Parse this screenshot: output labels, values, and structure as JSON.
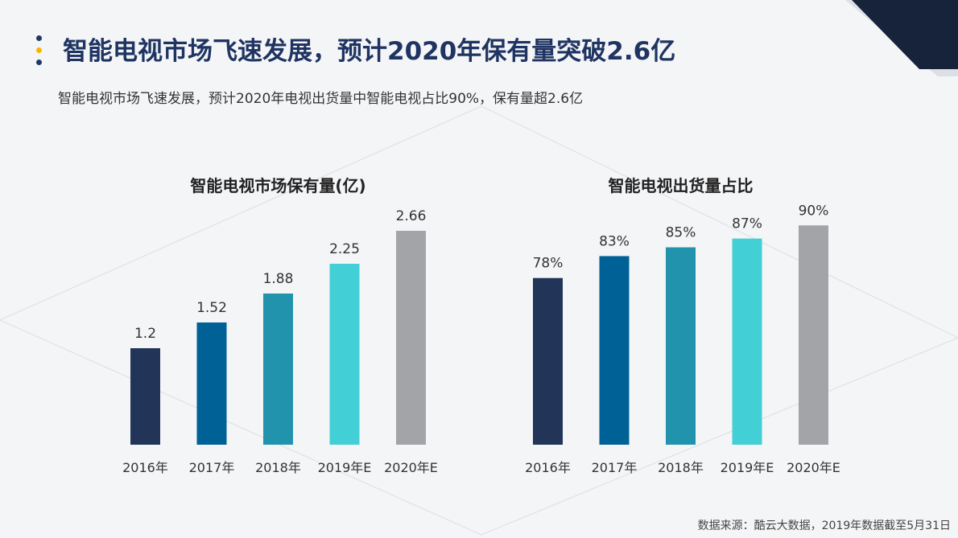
{
  "header": {
    "title": "智能电视市场飞速发展，预计2020年保有量突破2.6亿",
    "subtitle": "智能电视市场飞速发展，预计2020年电视出货量中智能电视占比90%，保有量超2.6亿"
  },
  "footer": {
    "source": "数据来源：酷云大数据，2019年数据截至5月31日"
  },
  "colors": {
    "title": "#1f3462",
    "bars": [
      "#223558",
      "#006196",
      "#2193ad",
      "#43cfd6",
      "#a3a4a8"
    ]
  },
  "chart_data": [
    {
      "type": "bar",
      "title": "智能电视市场保有量(亿)",
      "categories": [
        "2016年",
        "2017年",
        "2018年",
        "2019年E",
        "2020年E"
      ],
      "values": [
        1.2,
        1.52,
        1.88,
        2.25,
        2.66
      ],
      "value_labels": [
        "1.2",
        "1.52",
        "1.88",
        "2.25",
        "2.66"
      ],
      "xlabel": "",
      "ylabel": "",
      "ylim": [
        0,
        3.0
      ],
      "grid": false,
      "legend": "none"
    },
    {
      "type": "bar",
      "title": "智能电视出货量占比",
      "categories": [
        "2016年",
        "2017年",
        "2018年",
        "2019年E",
        "2020年E"
      ],
      "values": [
        78,
        83,
        85,
        87,
        90
      ],
      "value_labels": [
        "78%",
        "83%",
        "85%",
        "87%",
        "90%"
      ],
      "xlabel": "",
      "ylabel": "",
      "ylim": [
        40,
        95
      ],
      "grid": false,
      "legend": "none"
    }
  ]
}
